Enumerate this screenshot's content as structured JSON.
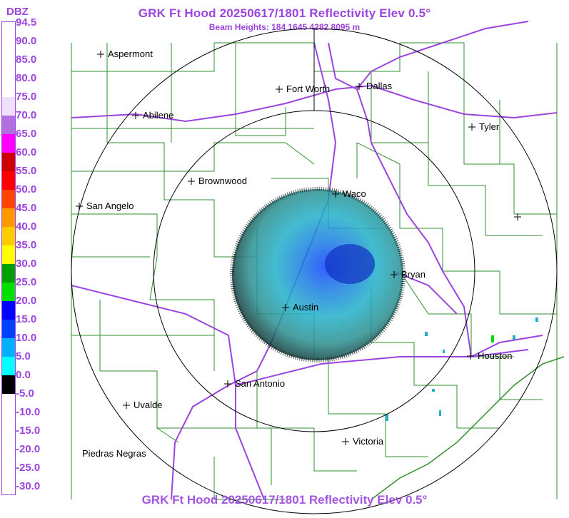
{
  "header": {
    "title": "GRK Ft Hood 20250617/1801 Reflectivity Elev 0.5°",
    "subtitle": "Beam Heights: 184 1645 4282 8095 m"
  },
  "footer": {
    "title": "GRK Ft Hood 20250617/1801 Reflectivity Elev 0.5°"
  },
  "legend": {
    "title": "DBZ",
    "labels": [
      "94.5",
      "90.0",
      "85.0",
      "80.0",
      "75.0",
      "70.0",
      "65.0",
      "60.0",
      "55.0",
      "50.0",
      "45.0",
      "40.0",
      "35.0",
      "30.0",
      "25.0",
      "20.0",
      "15.0",
      "10.0",
      "5.0",
      "0.0",
      "-5.0",
      "-10.0",
      "-15.0",
      "-20.0",
      "-25.0",
      "-30.0"
    ],
    "colors": [
      "#ffffff",
      "#ffffff",
      "#ffffff",
      "#ffffff",
      "#f0e0ff",
      "#b070e0",
      "#ff00ff",
      "#cc0000",
      "#ff0000",
      "#ff4400",
      "#ff9900",
      "#ffcc00",
      "#ffff00",
      "#00a000",
      "#00e000",
      "#0000ff",
      "#0040ff",
      "#00b0ff",
      "#00ffff",
      "#000000",
      "#ffffff",
      "#ffffff",
      "#ffffff",
      "#ffffff",
      "#ffffff"
    ]
  },
  "cities": [
    {
      "name": "Aspermont",
      "dx": 0
    },
    {
      "name": "Fort Worth",
      "dx": 0
    },
    {
      "name": "Dallas",
      "dx": 0
    },
    {
      "name": "Abilene",
      "dx": 0
    },
    {
      "name": "Tyler",
      "dx": 0
    },
    {
      "name": "Brownwood",
      "dx": 0
    },
    {
      "name": "Waco",
      "dx": 0
    },
    {
      "name": "San Angelo",
      "dx": 0
    },
    {
      "name": "Bryan",
      "dx": 0
    },
    {
      "name": "Austin",
      "dx": 0
    },
    {
      "name": "Houston",
      "dx": 0
    },
    {
      "name": "San Antonio",
      "dx": 0
    },
    {
      "name": "Uvalde",
      "dx": 0
    },
    {
      "name": "Victoria",
      "dx": 0
    },
    {
      "name": "Piedras Negras",
      "dx": 0
    }
  ],
  "colors": {
    "title": "#9b44e0",
    "county_lines": "#2f8f2f",
    "highways": "#9b44e0",
    "range_rings": "#000000"
  }
}
